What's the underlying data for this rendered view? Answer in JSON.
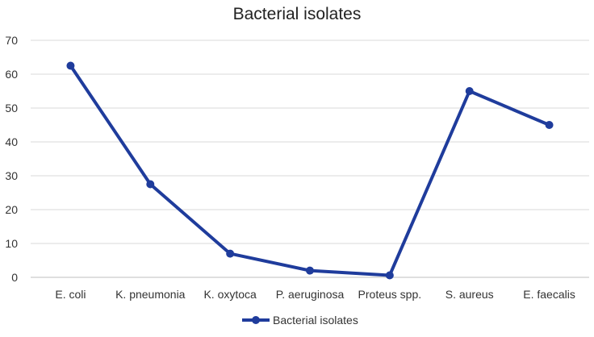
{
  "chart_data": {
    "type": "line",
    "title": "Bacterial isolates",
    "xlabel": "",
    "ylabel": "",
    "categories": [
      "E. coli",
      "K. pneumonia",
      "K. oxytoca",
      "P. aeruginosa",
      "Proteus spp.",
      "S. aureus",
      "E. faecalis"
    ],
    "series": [
      {
        "name": "Bacterial isolates",
        "values": [
          62.5,
          27.5,
          7,
          2,
          0.6,
          55,
          45
        ],
        "color": "#1F3C9C"
      }
    ],
    "ylim": [
      0,
      70
    ],
    "yticks": [
      "0",
      "10",
      "20",
      "30",
      "40",
      "50",
      "60",
      "70"
    ],
    "grid": true,
    "legend": "bottom"
  }
}
